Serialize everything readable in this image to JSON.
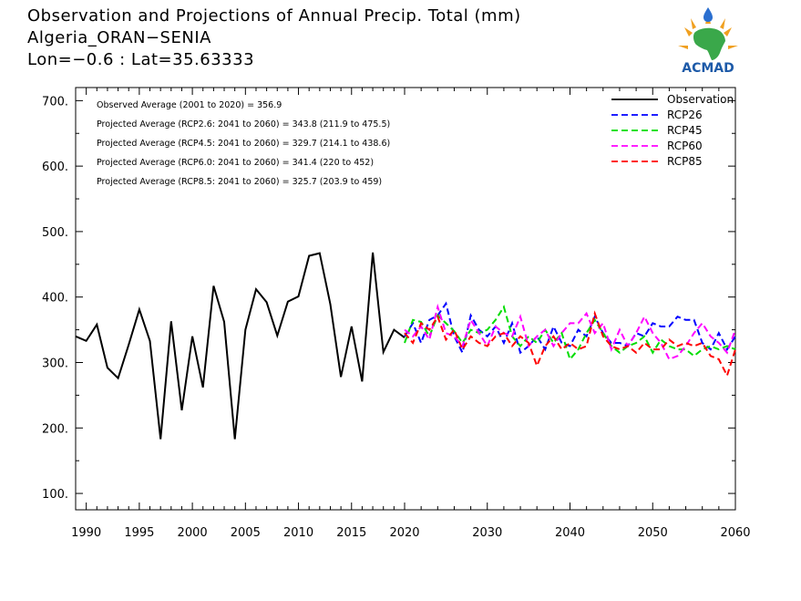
{
  "header": {
    "line1": "Observation and Projections of Annual Precip. Total (mm)",
    "line2": "Algeria_ORAN−SENIA",
    "line3": "Lon=−0.6 : Lat=35.63333"
  },
  "logo": {
    "text": "ACMAD",
    "icon": "africa-map-logo-icon"
  },
  "colors": {
    "observation": "#000000",
    "rcp26": "#0000ff",
    "rcp45": "#00dd00",
    "rcp60": "#ff00ff",
    "rcp85": "#ff0000"
  },
  "chart_data": {
    "type": "line",
    "xlim": [
      1989,
      2060
    ],
    "ylim": [
      75,
      720
    ],
    "x_ticks": [
      1990,
      1995,
      2000,
      2005,
      2010,
      2015,
      2020,
      2030,
      2040,
      2050,
      2060
    ],
    "x_tick_labels": [
      "1990",
      "1995",
      "2000",
      "2005",
      "2010",
      "2015",
      "2020",
      "2030",
      "2040",
      "2050",
      "2060"
    ],
    "y_ticks": [
      100,
      200,
      300,
      400,
      500,
      600,
      700
    ],
    "y_tick_labels": [
      "100.",
      "200.",
      "300.",
      "400.",
      "500.",
      "600.",
      "700."
    ],
    "stats": [
      "Observed Average (2001 to 2020) = 356.9",
      "Projected Average (RCP2.6: 2041 to 2060) = 343.8 (211.9 to 475.5)",
      "Projected Average (RCP4.5: 2041 to 2060) = 329.7 (214.1 to 438.6)",
      "Projected Average (RCP6.0: 2041 to 2060) = 341.4 (220 to 452)",
      "Projected Average (RCP8.5: 2041 to 2060) = 325.7 (203.9 to 459)"
    ],
    "legend_position": "top-right",
    "series": [
      {
        "name": "Observation",
        "style": "solid",
        "color": "#000000",
        "x": [
          1989,
          1990,
          1991,
          1992,
          1993,
          1994,
          1995,
          1996,
          1997,
          1998,
          1999,
          2000,
          2001,
          2002,
          2003,
          2004,
          2005,
          2006,
          2007,
          2008,
          2009,
          2010,
          2011,
          2012,
          2013,
          2014,
          2015,
          2016,
          2017,
          2018,
          2019,
          2020
        ],
        "values": [
          340,
          333,
          358,
          292,
          276,
          327,
          381,
          333,
          183,
          363,
          227,
          340,
          262,
          417,
          362,
          183,
          350,
          412,
          392,
          341,
          393,
          401,
          463,
          467,
          389,
          278,
          355,
          271,
          468,
          316,
          350,
          338
        ]
      },
      {
        "name": "RCP26",
        "style": "dashed",
        "color": "#0000ff",
        "x": [
          2020,
          2021,
          2022,
          2023,
          2024,
          2025,
          2026,
          2027,
          2028,
          2029,
          2030,
          2031,
          2032,
          2033,
          2034,
          2035,
          2036,
          2037,
          2038,
          2039,
          2040,
          2041,
          2042,
          2043,
          2044,
          2045,
          2046,
          2047,
          2048,
          2049,
          2050,
          2051,
          2052,
          2053,
          2054,
          2055,
          2056,
          2057,
          2058,
          2059,
          2060
        ],
        "values": [
          340,
          360,
          330,
          365,
          372,
          390,
          340,
          315,
          372,
          350,
          340,
          355,
          330,
          360,
          315,
          325,
          340,
          320,
          355,
          330,
          325,
          350,
          340,
          370,
          345,
          330,
          330,
          325,
          345,
          340,
          360,
          355,
          355,
          370,
          365,
          365,
          330,
          320,
          345,
          320,
          340
        ]
      },
      {
        "name": "RCP45",
        "style": "dashed",
        "color": "#00dd00",
        "x": [
          2020,
          2021,
          2022,
          2023,
          2024,
          2025,
          2026,
          2027,
          2028,
          2029,
          2030,
          2031,
          2032,
          2033,
          2034,
          2035,
          2036,
          2037,
          2038,
          2039,
          2040,
          2041,
          2042,
          2043,
          2044,
          2045,
          2046,
          2047,
          2048,
          2049,
          2050,
          2051,
          2052,
          2053,
          2054,
          2055,
          2056,
          2057,
          2058,
          2059,
          2060
        ],
        "values": [
          330,
          365,
          362,
          340,
          372,
          360,
          348,
          330,
          350,
          345,
          350,
          365,
          385,
          340,
          325,
          340,
          330,
          350,
          330,
          345,
          305,
          320,
          345,
          365,
          345,
          325,
          315,
          325,
          330,
          340,
          315,
          335,
          325,
          320,
          320,
          310,
          320,
          325,
          320,
          325,
          320
        ]
      },
      {
        "name": "RCP60",
        "style": "dashed",
        "color": "#ff00ff",
        "x": [
          2020,
          2021,
          2022,
          2023,
          2024,
          2025,
          2026,
          2027,
          2028,
          2029,
          2030,
          2031,
          2032,
          2033,
          2034,
          2035,
          2036,
          2037,
          2038,
          2039,
          2040,
          2041,
          2042,
          2043,
          2044,
          2045,
          2046,
          2047,
          2048,
          2049,
          2050,
          2051,
          2052,
          2053,
          2054,
          2055,
          2056,
          2057,
          2058,
          2059,
          2060
        ],
        "values": [
          350,
          340,
          355,
          335,
          385,
          345,
          340,
          325,
          365,
          345,
          325,
          355,
          345,
          340,
          370,
          325,
          340,
          350,
          325,
          345,
          360,
          360,
          375,
          345,
          360,
          320,
          350,
          325,
          345,
          370,
          345,
          330,
          305,
          310,
          325,
          345,
          360,
          340,
          330,
          315,
          350
        ]
      },
      {
        "name": "RCP85",
        "style": "dashed",
        "color": "#ff0000",
        "x": [
          2020,
          2021,
          2022,
          2023,
          2024,
          2025,
          2026,
          2027,
          2028,
          2029,
          2030,
          2031,
          2032,
          2033,
          2034,
          2035,
          2036,
          2037,
          2038,
          2039,
          2040,
          2041,
          2042,
          2043,
          2044,
          2045,
          2046,
          2047,
          2048,
          2049,
          2050,
          2051,
          2052,
          2053,
          2054,
          2055,
          2056,
          2057,
          2058,
          2059,
          2060
        ],
        "values": [
          345,
          330,
          360,
          350,
          370,
          335,
          350,
          320,
          340,
          330,
          325,
          340,
          345,
          325,
          340,
          330,
          295,
          325,
          340,
          320,
          330,
          320,
          325,
          375,
          340,
          325,
          320,
          325,
          315,
          330,
          320,
          320,
          335,
          325,
          330,
          325,
          330,
          310,
          305,
          280,
          320
        ]
      }
    ]
  }
}
